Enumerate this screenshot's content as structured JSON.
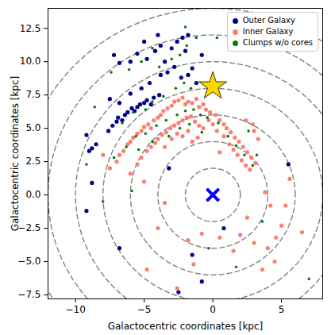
{
  "chart_data": {
    "type": "scatter",
    "xlabel": "Galactocentric coordinates [kpc]",
    "ylabel": "Galactocentric coordinates [kpc]",
    "xlim": [
      -12,
      8
    ],
    "ylim": [
      -7.8,
      14
    ],
    "xticks": [
      {
        "value": -10,
        "label": "−10"
      },
      {
        "value": -5,
        "label": "−5"
      },
      {
        "value": 0,
        "label": "0"
      },
      {
        "value": 5,
        "label": "5"
      }
    ],
    "yticks": [
      {
        "value": -7.5,
        "label": "−7.5"
      },
      {
        "value": -5,
        "label": "−5.0"
      },
      {
        "value": -2.5,
        "label": "−2.5"
      },
      {
        "value": 0,
        "label": "0.0"
      },
      {
        "value": 2.5,
        "label": "2.5"
      },
      {
        "value": 5,
        "label": "5.0"
      },
      {
        "value": 7.5,
        "label": "7.5"
      },
      {
        "value": 10,
        "label": "10.0"
      },
      {
        "value": 12.5,
        "label": "12.5"
      }
    ],
    "grid": false,
    "legend": "upper right",
    "rings": [
      2,
      4,
      6,
      8,
      10,
      12,
      14
    ],
    "markers": [
      {
        "x": 0,
        "y": 8.15,
        "color": "#ffd700",
        "marker": "star"
      },
      {
        "x": 0,
        "y": 0,
        "color": "#0000ff",
        "marker": "x"
      }
    ],
    "series": [
      {
        "name": "Outer Galaxy",
        "color": "#00008b",
        "marker": "o",
        "values": [
          [
            -9.0,
            3.3
          ],
          [
            -8.8,
            3.5
          ],
          [
            -8.5,
            3.8
          ],
          [
            -9.2,
            4.5
          ],
          [
            -7.6,
            4.8
          ],
          [
            -7.3,
            5.2
          ],
          [
            -7.0,
            5.5
          ],
          [
            -6.9,
            5.8
          ],
          [
            -6.6,
            5.6
          ],
          [
            -6.4,
            6.0
          ],
          [
            -6.2,
            6.2
          ],
          [
            -5.9,
            6.5
          ],
          [
            -5.7,
            6.3
          ],
          [
            -5.5,
            6.6
          ],
          [
            -5.3,
            6.8
          ],
          [
            -5.0,
            6.9
          ],
          [
            -4.8,
            7.1
          ],
          [
            -4.5,
            6.8
          ],
          [
            -4.3,
            7.3
          ],
          [
            -3.9,
            7.5
          ],
          [
            -6.8,
            6.9
          ],
          [
            -7.5,
            7.2
          ],
          [
            -6.0,
            7.6
          ],
          [
            -5.2,
            8.0
          ],
          [
            -4.6,
            8.4
          ],
          [
            -3.8,
            9.0
          ],
          [
            -3.3,
            9.2
          ],
          [
            -2.8,
            9.6
          ],
          [
            -2.3,
            8.8
          ],
          [
            -1.8,
            9.0
          ],
          [
            -1.5,
            9.5
          ],
          [
            -1.2,
            8.4
          ],
          [
            -3.5,
            10.0
          ],
          [
            -4.8,
            10.2
          ],
          [
            -5.5,
            10.6
          ],
          [
            -4.2,
            10.8
          ],
          [
            -3.8,
            11.2
          ],
          [
            -3.0,
            11.0
          ],
          [
            -2.6,
            11.5
          ],
          [
            -2.2,
            11.8
          ],
          [
            -1.8,
            12.0
          ],
          [
            -5.0,
            11.5
          ],
          [
            -4.0,
            12.0
          ],
          [
            -6.0,
            10.0
          ],
          [
            -2.0,
            10.8
          ],
          [
            -0.8,
            10.5
          ],
          [
            -9.2,
            -1.2
          ],
          [
            -8.8,
            0.9
          ],
          [
            -6.8,
            -4.0
          ],
          [
            -2.5,
            -7.3
          ],
          [
            -0.8,
            -6.5
          ],
          [
            -1.5,
            -4.5
          ],
          [
            0.8,
            -2.5
          ],
          [
            5.5,
            2.3
          ],
          [
            -3.2,
            2.0
          ],
          [
            -6.8,
            9.9
          ],
          [
            -7.2,
            10.5
          ]
        ]
      },
      {
        "name": "Inner Galaxy",
        "color": "#fa8072",
        "marker": "o",
        "values": [
          [
            -7.0,
            2.5
          ],
          [
            -6.8,
            3.0
          ],
          [
            -6.5,
            3.3
          ],
          [
            -6.2,
            3.8
          ],
          [
            -6.0,
            4.0
          ],
          [
            -5.8,
            4.3
          ],
          [
            -5.5,
            4.6
          ],
          [
            -5.2,
            4.8
          ],
          [
            -5.0,
            5.1
          ],
          [
            -4.7,
            5.3
          ],
          [
            -4.5,
            5.0
          ],
          [
            -4.3,
            5.6
          ],
          [
            -4.0,
            5.8
          ],
          [
            -3.8,
            6.0
          ],
          [
            -3.6,
            6.3
          ],
          [
            -3.3,
            6.5
          ],
          [
            -3.0,
            6.7
          ],
          [
            -2.8,
            7.0
          ],
          [
            -2.5,
            7.1
          ],
          [
            -2.2,
            7.3
          ],
          [
            -2.0,
            6.8
          ],
          [
            -1.8,
            7.0
          ],
          [
            -1.5,
            6.9
          ],
          [
            -1.2,
            7.2
          ],
          [
            -1.0,
            6.6
          ],
          [
            -0.7,
            6.8
          ],
          [
            -0.5,
            6.4
          ],
          [
            -0.2,
            6.2
          ],
          [
            0.2,
            6.0
          ],
          [
            0.5,
            5.6
          ],
          [
            0.8,
            5.3
          ],
          [
            -5.5,
            2.3
          ],
          [
            -5.2,
            2.8
          ],
          [
            -4.8,
            3.3
          ],
          [
            -4.5,
            3.6
          ],
          [
            -4.2,
            3.9
          ],
          [
            -4.0,
            4.2
          ],
          [
            -3.7,
            4.5
          ],
          [
            -3.4,
            4.7
          ],
          [
            -3.1,
            5.0
          ],
          [
            -2.8,
            5.2
          ],
          [
            -2.5,
            5.4
          ],
          [
            -2.2,
            5.6
          ],
          [
            -1.9,
            5.8
          ],
          [
            -1.6,
            5.9
          ],
          [
            -1.3,
            5.5
          ],
          [
            -1.0,
            5.2
          ],
          [
            -0.7,
            5.0
          ],
          [
            -2.6,
            4.6
          ],
          [
            -2.2,
            4.4
          ],
          [
            -1.8,
            4.8
          ],
          [
            -3.0,
            4.2
          ],
          [
            -3.5,
            3.6
          ],
          [
            -1.5,
            4.0
          ],
          [
            -1.1,
            4.3
          ],
          [
            1.0,
            5.0
          ],
          [
            1.3,
            4.7
          ],
          [
            1.6,
            4.3
          ],
          [
            1.9,
            4.0
          ],
          [
            2.2,
            3.6
          ],
          [
            2.5,
            3.2
          ],
          [
            2.8,
            2.8
          ],
          [
            3.1,
            2.4
          ],
          [
            1.2,
            3.8
          ],
          [
            1.5,
            3.4
          ],
          [
            1.8,
            3.0
          ],
          [
            2.1,
            2.6
          ],
          [
            2.4,
            2.2
          ],
          [
            2.7,
            1.9
          ],
          [
            0.8,
            4.4
          ],
          [
            0.3,
            4.8
          ],
          [
            0.0,
            5.3
          ],
          [
            -0.3,
            5.6
          ],
          [
            3.0,
            4.8
          ],
          [
            3.3,
            4.2
          ],
          [
            2.9,
            5.3
          ],
          [
            2.4,
            5.6
          ],
          [
            0.5,
            3.2
          ],
          [
            -8.0,
            3.0
          ],
          [
            -7.5,
            2.0
          ],
          [
            -6.0,
            1.6
          ],
          [
            -4.0,
            -2.5
          ],
          [
            -1.8,
            -3.4
          ],
          [
            -0.8,
            -2.9
          ],
          [
            0.5,
            -3.2
          ],
          [
            2.0,
            -3.0
          ],
          [
            3.0,
            -3.6
          ],
          [
            4.0,
            -4.0
          ],
          [
            4.6,
            -3.2
          ],
          [
            5.0,
            -2.3
          ],
          [
            5.3,
            -0.8
          ],
          [
            4.2,
            -0.8
          ],
          [
            4.5,
            -5.0
          ],
          [
            3.6,
            -5.6
          ],
          [
            1.5,
            -4.2
          ],
          [
            -1.4,
            -5.2
          ],
          [
            -4.8,
            -5.6
          ],
          [
            -2.6,
            -7.0
          ],
          [
            3.8,
            0.2
          ],
          [
            6.5,
            -2.8
          ],
          [
            -5.0,
            1.0
          ],
          [
            -3.5,
            -0.6
          ],
          [
            2.5,
            -1.7
          ],
          [
            5.6,
            1.2
          ]
        ]
      },
      {
        "name": "Clumps w/o cores",
        "color": "#008000",
        "marker": "o",
        "values": [
          [
            -7.2,
            2.8
          ],
          [
            -6.3,
            3.6
          ],
          [
            -5.6,
            4.4
          ],
          [
            -4.9,
            4.6
          ],
          [
            -4.1,
            5.2
          ],
          [
            -3.4,
            5.6
          ],
          [
            -2.6,
            6.0
          ],
          [
            -2.0,
            6.3
          ],
          [
            -1.4,
            6.4
          ],
          [
            -0.9,
            6.0
          ],
          [
            -0.4,
            5.8
          ],
          [
            0.4,
            5.4
          ],
          [
            1.1,
            4.4
          ],
          [
            1.7,
            3.7
          ],
          [
            2.3,
            3.0
          ],
          [
            2.9,
            2.2
          ],
          [
            3.2,
            3.0
          ],
          [
            2.6,
            4.8
          ],
          [
            -3.2,
            4.4
          ],
          [
            -2.4,
            5.0
          ],
          [
            -1.7,
            5.3
          ],
          [
            -0.8,
            4.7
          ],
          [
            -4.4,
            4.0
          ],
          [
            -5.4,
            3.4
          ],
          [
            -6.6,
            5.4
          ],
          [
            -5.8,
            6.2
          ],
          [
            -4.9,
            6.4
          ],
          [
            -4.4,
            7.0
          ],
          [
            -3.6,
            7.4
          ],
          [
            -2.7,
            8.0
          ],
          [
            -2.1,
            8.4
          ],
          [
            -1.6,
            8.0
          ],
          [
            -3.9,
            9.6
          ],
          [
            -3.0,
            10.2
          ],
          [
            -2.4,
            10.5
          ],
          [
            -1.9,
            11.2
          ],
          [
            -1.2,
            11.8
          ],
          [
            -4.4,
            11.0
          ],
          [
            -5.2,
            10.0
          ],
          [
            -6.1,
            9.4
          ],
          [
            -7.4,
            9.2
          ],
          [
            -8.6,
            6.6
          ],
          [
            -9.2,
            2.3
          ],
          [
            -8.0,
            -0.5
          ],
          [
            -5.9,
            0.3
          ],
          [
            -0.3,
            -4.0
          ],
          [
            1.7,
            -5.4
          ],
          [
            3.6,
            -2.0
          ],
          [
            7.0,
            -6.3
          ],
          [
            -2.0,
            12.6
          ],
          [
            0.3,
            11.8
          ]
        ]
      }
    ]
  }
}
